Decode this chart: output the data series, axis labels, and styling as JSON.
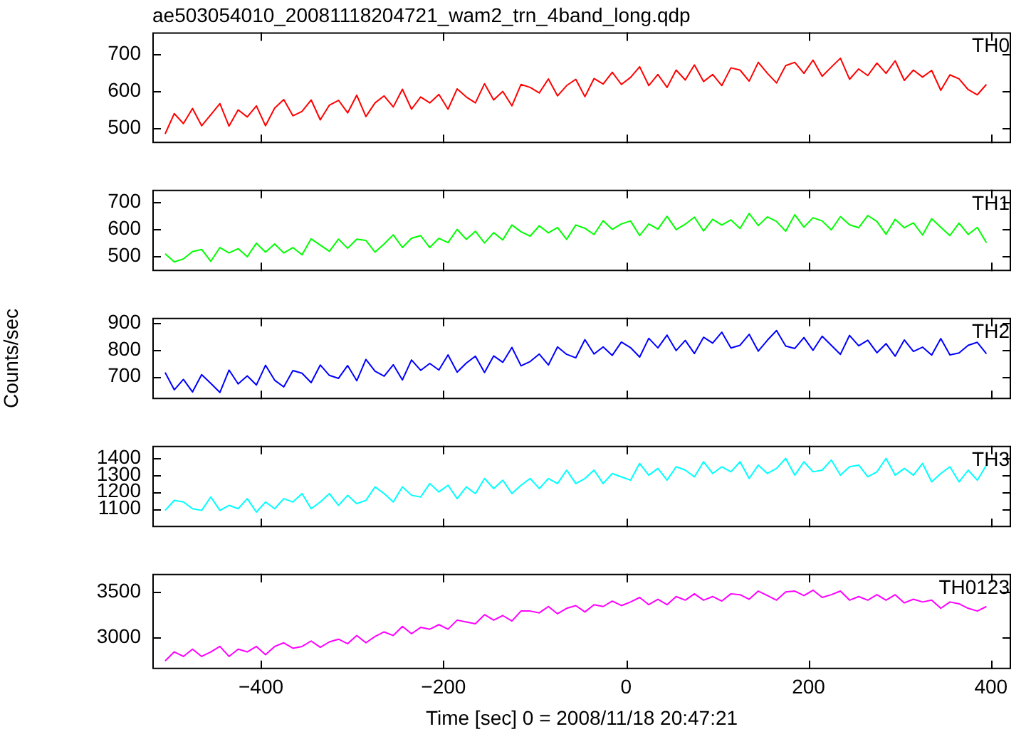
{
  "chart_data": [
    {
      "type": "line",
      "title": "ae503054010_20081118204721_wam2_trn_4band_long.qdp",
      "legend": "top right",
      "tick_labels": "y",
      "x": [
        -505,
        -495,
        -485,
        -475,
        -465,
        -455,
        -445,
        -435,
        -425,
        -415,
        -405,
        -395,
        -385,
        -375,
        -365,
        -355,
        -345,
        -335,
        -325,
        -315,
        -305,
        -295,
        -285,
        -275,
        -265,
        -255,
        -245,
        -235,
        -225,
        -215,
        -205,
        -195,
        -185,
        -175,
        -165,
        -155,
        -145,
        -135,
        -125,
        -115,
        -105,
        -95,
        -85,
        -75,
        -65,
        -55,
        -45,
        -35,
        -25,
        -15,
        -5,
        5,
        15,
        25,
        35,
        45,
        55,
        65,
        75,
        85,
        95,
        105,
        115,
        125,
        135,
        145,
        155,
        165,
        175,
        185,
        195,
        205,
        215,
        225,
        235,
        245,
        255,
        265,
        275,
        285,
        295,
        305,
        315,
        325,
        335,
        345,
        355,
        365,
        375,
        385,
        395
      ],
      "xlim": [
        -519,
        422
      ],
      "xticks": [
        -400,
        -200,
        0,
        200,
        400
      ],
      "ylim": [
        460,
        760
      ],
      "yticks": [
        500,
        600,
        700
      ],
      "series": [
        {
          "name": "TH0",
          "color": "#ff0000",
          "values": [
            485,
            540,
            513,
            554,
            507,
            537,
            567,
            506,
            550,
            531,
            561,
            507,
            555,
            578,
            534,
            546,
            577,
            523,
            563,
            576,
            542,
            590,
            532,
            569,
            588,
            558,
            606,
            552,
            585,
            569,
            592,
            552,
            607,
            585,
            569,
            621,
            577,
            600,
            561,
            619,
            611,
            596,
            634,
            588,
            616,
            633,
            586,
            635,
            620,
            652,
            619,
            638,
            667,
            616,
            646,
            611,
            658,
            631,
            672,
            627,
            646,
            616,
            664,
            658,
            628,
            679,
            649,
            623,
            670,
            679,
            649,
            685,
            641,
            666,
            690,
            633,
            661,
            643,
            677,
            649,
            683,
            630,
            658,
            639,
            657,
            603,
            645,
            634,
            605,
            591,
            619
          ]
        }
      ]
    },
    {
      "type": "line",
      "legend": "top right",
      "tick_labels": "y",
      "x": [
        -505,
        -495,
        -485,
        -475,
        -465,
        -455,
        -445,
        -435,
        -425,
        -415,
        -405,
        -395,
        -385,
        -375,
        -365,
        -355,
        -345,
        -335,
        -325,
        -315,
        -305,
        -295,
        -285,
        -275,
        -265,
        -255,
        -245,
        -235,
        -225,
        -215,
        -205,
        -195,
        -185,
        -175,
        -165,
        -155,
        -145,
        -135,
        -125,
        -115,
        -105,
        -95,
        -85,
        -75,
        -65,
        -55,
        -45,
        -35,
        -25,
        -15,
        -5,
        5,
        15,
        25,
        35,
        45,
        55,
        65,
        75,
        85,
        95,
        105,
        115,
        125,
        135,
        145,
        155,
        165,
        175,
        185,
        195,
        205,
        215,
        225,
        235,
        245,
        255,
        265,
        275,
        285,
        295,
        305,
        315,
        325,
        335,
        345,
        355,
        365,
        375,
        385,
        395
      ],
      "xlim": [
        -519,
        422
      ],
      "xticks": [
        -400,
        -200,
        0,
        200,
        400
      ],
      "ylim": [
        445,
        745
      ],
      "yticks": [
        500,
        600,
        700
      ],
      "series": [
        {
          "name": "TH1",
          "color": "#00ff00",
          "values": [
            509,
            479,
            490,
            517,
            525,
            481,
            532,
            512,
            528,
            498,
            548,
            515,
            545,
            512,
            532,
            505,
            564,
            541,
            518,
            563,
            529,
            563,
            558,
            515,
            545,
            579,
            532,
            566,
            576,
            532,
            566,
            550,
            599,
            562,
            592,
            549,
            587,
            560,
            615,
            590,
            574,
            612,
            586,
            606,
            562,
            615,
            603,
            580,
            631,
            599,
            619,
            630,
            576,
            619,
            600,
            647,
            598,
            618,
            644,
            593,
            636,
            615,
            634,
            602,
            658,
            613,
            645,
            628,
            592,
            653,
            607,
            642,
            630,
            597,
            646,
            616,
            605,
            650,
            628,
            581,
            636,
            605,
            623,
            578,
            638,
            607,
            576,
            622,
            580,
            606,
            550
          ]
        }
      ]
    },
    {
      "type": "line",
      "ylabel": "Counts/sec",
      "legend": "top right",
      "tick_labels": "y",
      "x": [
        -505,
        -495,
        -485,
        -475,
        -465,
        -455,
        -445,
        -435,
        -425,
        -415,
        -405,
        -395,
        -385,
        -375,
        -365,
        -355,
        -345,
        -335,
        -325,
        -315,
        -305,
        -295,
        -285,
        -275,
        -265,
        -255,
        -245,
        -235,
        -225,
        -215,
        -205,
        -195,
        -185,
        -175,
        -165,
        -155,
        -145,
        -135,
        -125,
        -115,
        -105,
        -95,
        -85,
        -75,
        -65,
        -55,
        -45,
        -35,
        -25,
        -15,
        -5,
        5,
        15,
        25,
        35,
        45,
        55,
        65,
        75,
        85,
        95,
        105,
        115,
        125,
        135,
        145,
        155,
        165,
        175,
        185,
        195,
        205,
        215,
        225,
        235,
        245,
        255,
        265,
        275,
        285,
        295,
        305,
        315,
        325,
        335,
        345,
        355,
        365,
        375,
        385,
        395
      ],
      "xlim": [
        -519,
        422
      ],
      "xticks": [
        -400,
        -200,
        0,
        200,
        400
      ],
      "ylim": [
        615,
        920
      ],
      "yticks": [
        700,
        800,
        900
      ],
      "series": [
        {
          "name": "TH2",
          "color": "#0000ff",
          "values": [
            715,
            650,
            689,
            642,
            707,
            674,
            640,
            724,
            672,
            702,
            668,
            742,
            686,
            661,
            722,
            712,
            677,
            743,
            704,
            693,
            741,
            684,
            764,
            720,
            701,
            744,
            687,
            762,
            723,
            749,
            724,
            781,
            716,
            750,
            776,
            715,
            777,
            753,
            809,
            740,
            756,
            784,
            743,
            811,
            783,
            770,
            838,
            784,
            811,
            779,
            829,
            808,
            773,
            843,
            807,
            855,
            797,
            835,
            786,
            847,
            825,
            866,
            807,
            817,
            858,
            795,
            836,
            872,
            814,
            805,
            846,
            798,
            851,
            817,
            783,
            854,
            815,
            836,
            789,
            823,
            776,
            837,
            794,
            810,
            780,
            842,
            781,
            788,
            817,
            828,
            785
          ]
        }
      ]
    },
    {
      "type": "line",
      "legend": "top right",
      "tick_labels": "y",
      "x": [
        -505,
        -495,
        -485,
        -475,
        -465,
        -455,
        -445,
        -435,
        -425,
        -415,
        -405,
        -395,
        -385,
        -375,
        -365,
        -355,
        -345,
        -335,
        -325,
        -315,
        -305,
        -295,
        -285,
        -275,
        -265,
        -255,
        -245,
        -235,
        -225,
        -215,
        -205,
        -195,
        -185,
        -175,
        -165,
        -155,
        -145,
        -135,
        -125,
        -115,
        -105,
        -95,
        -85,
        -75,
        -65,
        -55,
        -45,
        -35,
        -25,
        -15,
        -5,
        5,
        15,
        25,
        35,
        45,
        55,
        65,
        75,
        85,
        95,
        105,
        115,
        125,
        135,
        145,
        155,
        165,
        175,
        185,
        195,
        205,
        215,
        225,
        235,
        245,
        255,
        265,
        275,
        285,
        295,
        305,
        315,
        325,
        335,
        345,
        355,
        365,
        375,
        385,
        395
      ],
      "xlim": [
        -519,
        422
      ],
      "xticks": [
        -400,
        -200,
        0,
        200,
        400
      ],
      "ylim": [
        990,
        1475
      ],
      "yticks": [
        1100,
        1200,
        1300,
        1400
      ],
      "series": [
        {
          "name": "TH3",
          "color": "#00ffff",
          "values": [
            1090,
            1150,
            1140,
            1100,
            1090,
            1170,
            1090,
            1120,
            1100,
            1160,
            1080,
            1140,
            1100,
            1160,
            1140,
            1190,
            1100,
            1140,
            1190,
            1120,
            1180,
            1130,
            1150,
            1230,
            1190,
            1140,
            1230,
            1180,
            1170,
            1250,
            1200,
            1240,
            1160,
            1230,
            1190,
            1280,
            1220,
            1270,
            1190,
            1240,
            1280,
            1220,
            1280,
            1250,
            1330,
            1250,
            1280,
            1330,
            1250,
            1310,
            1290,
            1270,
            1370,
            1300,
            1340,
            1270,
            1350,
            1330,
            1290,
            1380,
            1310,
            1350,
            1320,
            1380,
            1280,
            1360,
            1310,
            1340,
            1400,
            1300,
            1380,
            1320,
            1330,
            1390,
            1300,
            1350,
            1360,
            1290,
            1320,
            1400,
            1300,
            1340,
            1300,
            1370,
            1260,
            1310,
            1350,
            1260,
            1330,
            1270,
            1360
          ]
        }
      ]
    },
    {
      "type": "line",
      "xlabel": "Time [sec] 0 = 2008/11/18 20:47:21",
      "legend": "top right",
      "x": [
        -505,
        -495,
        -485,
        -475,
        -465,
        -455,
        -445,
        -435,
        -425,
        -415,
        -405,
        -395,
        -385,
        -375,
        -365,
        -355,
        -345,
        -335,
        -325,
        -315,
        -305,
        -295,
        -285,
        -275,
        -265,
        -255,
        -245,
        -235,
        -225,
        -215,
        -205,
        -195,
        -185,
        -175,
        -165,
        -155,
        -145,
        -135,
        -125,
        -115,
        -105,
        -95,
        -85,
        -75,
        -65,
        -55,
        -45,
        -35,
        -25,
        -15,
        -5,
        5,
        15,
        25,
        35,
        45,
        55,
        65,
        75,
        85,
        95,
        105,
        115,
        125,
        135,
        145,
        155,
        165,
        175,
        185,
        195,
        205,
        215,
        225,
        235,
        245,
        255,
        265,
        275,
        285,
        295,
        305,
        315,
        325,
        335,
        345,
        355,
        365,
        375,
        385,
        395
      ],
      "xlim": [
        -519,
        422
      ],
      "xticks": [
        -400,
        -200,
        0,
        200,
        400
      ],
      "ylim": [
        2650,
        3700
      ],
      "yticks": [
        3000,
        3500
      ],
      "series": [
        {
          "name": "TH0123",
          "color": "#ff00ff",
          "values": [
            2740,
            2840,
            2790,
            2870,
            2790,
            2840,
            2900,
            2790,
            2870,
            2840,
            2900,
            2810,
            2900,
            2940,
            2880,
            2900,
            2960,
            2890,
            2950,
            2980,
            2930,
            3020,
            2940,
            3010,
            3060,
            3020,
            3120,
            3040,
            3110,
            3090,
            3140,
            3090,
            3190,
            3170,
            3150,
            3250,
            3190,
            3240,
            3180,
            3290,
            3290,
            3270,
            3340,
            3260,
            3320,
            3350,
            3280,
            3360,
            3340,
            3400,
            3350,
            3390,
            3440,
            3360,
            3420,
            3360,
            3450,
            3410,
            3480,
            3410,
            3450,
            3400,
            3480,
            3470,
            3420,
            3510,
            3460,
            3410,
            3500,
            3510,
            3460,
            3520,
            3440,
            3470,
            3510,
            3410,
            3450,
            3410,
            3470,
            3410,
            3470,
            3380,
            3420,
            3390,
            3410,
            3320,
            3390,
            3370,
            3320,
            3290,
            3340
          ]
        }
      ]
    }
  ]
}
